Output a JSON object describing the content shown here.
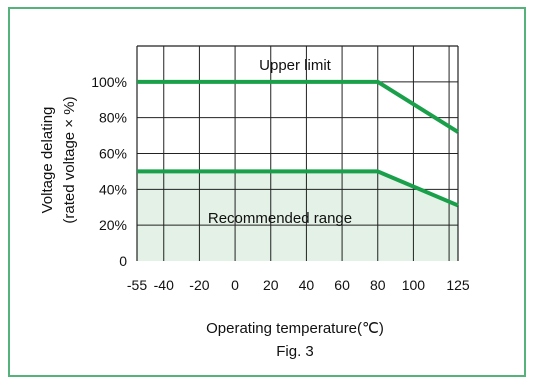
{
  "chart_data": {
    "type": "line",
    "x_tick_labels": [
      "-55",
      "-40",
      "-20",
      "0",
      "20",
      "40",
      "60",
      "80",
      "100",
      "125"
    ],
    "y_tick_labels": [
      "0",
      "20%",
      "40%",
      "60%",
      "80%",
      "100%"
    ],
    "xlim": [
      -55,
      125
    ],
    "ylim": [
      0,
      120
    ],
    "grid": true,
    "ylabel_line1": "Voltage delating",
    "ylabel_line2": "(rated voltage × %)",
    "xlabel": "Operating temperature(℃)",
    "caption": "Fig. 3",
    "series": [
      {
        "name": "Upper limit",
        "x": [
          -55,
          80,
          125
        ],
        "y": [
          100,
          100,
          72
        ],
        "color": "#1aa04a"
      },
      {
        "name": "Recommended range",
        "x": [
          -55,
          80,
          125
        ],
        "y": [
          50,
          50,
          31
        ],
        "color": "#1aa04a",
        "fill_below": "#e3f1e6"
      }
    ]
  }
}
